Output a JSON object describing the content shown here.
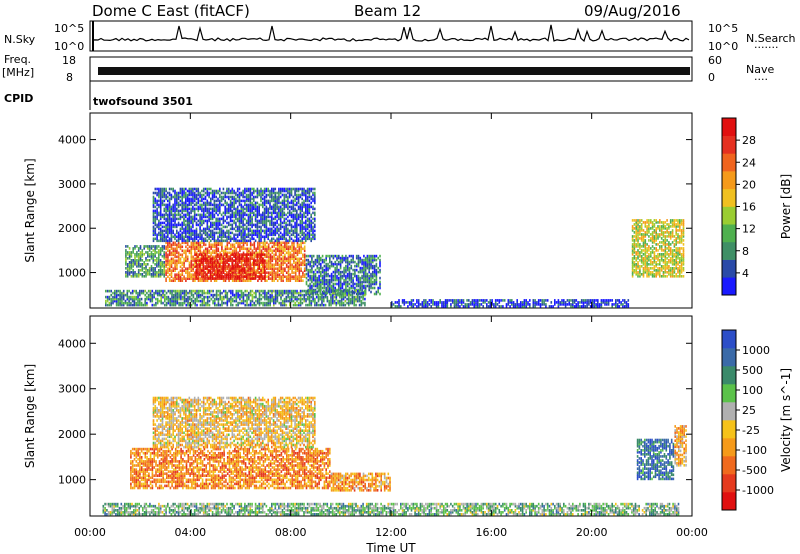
{
  "header": {
    "station": "Dome C East (fitACF)",
    "beam": "Beam 12",
    "date": "09/Aug/2016"
  },
  "strip_labels": {
    "nsky": "N.Sky",
    "nsky_top": "10^5",
    "nsky_bottom": "10^0",
    "nsearch": "N.Search",
    "nsearch_dots": "·······",
    "nsearch_top": "10^5",
    "nsearch_bottom": "10^0",
    "freq_top_line": "Freq.",
    "freq_unit": "[MHz]",
    "freq_top": "18",
    "freq_bottom": "8",
    "nave": "Nave",
    "nave_dots": "····",
    "nave_top": "60",
    "nave_bottom": "0",
    "cpid": "CPID",
    "cpid_value": "twofsound 3501"
  },
  "colors": {
    "power_scale": [
      "#1a1aff",
      "#2a4aa8",
      "#3f8f66",
      "#4fb04f",
      "#9acd32",
      "#f0c020",
      "#f59a1a",
      "#f0641e",
      "#e53020",
      "#e11010"
    ],
    "velocity_scale": [
      "#2c4ec8",
      "#3a6aa8",
      "#3a8a6a",
      "#5bc24a",
      "#b0b0b0",
      "#f5c21a",
      "#f59a1a",
      "#f06a1e",
      "#e53a1e",
      "#e01010"
    ]
  },
  "chart_data": [
    {
      "type": "heatmap",
      "name": "power",
      "ylabel": "Slant Range [km]",
      "xlabel": "Time UT",
      "ylim": [
        200,
        4600
      ],
      "yticks": [
        "1000",
        "2000",
        "3000",
        "4000"
      ],
      "xticks": [
        "00:00",
        "04:00",
        "08:00",
        "12:00",
        "16:00",
        "20:00",
        "00:00"
      ],
      "colorbar_label": "Power [dB]",
      "colorbar_ticks": [
        "4",
        "8",
        "12",
        "16",
        "20",
        "24",
        "28"
      ],
      "regions": [
        {
          "t0": 3.0,
          "t1": 8.6,
          "r0": 800,
          "r1": 1700,
          "level": 0.72
        },
        {
          "t0": 4.2,
          "t1": 7.0,
          "r0": 850,
          "r1": 1400,
          "level": 0.92
        },
        {
          "t0": 1.4,
          "t1": 3.0,
          "r0": 900,
          "r1": 1600,
          "level": 0.3
        },
        {
          "t0": 8.6,
          "t1": 11.6,
          "r0": 500,
          "r1": 1400,
          "level": 0.2
        },
        {
          "t0": 21.6,
          "t1": 23.7,
          "r0": 900,
          "r1": 2200,
          "level": 0.5
        },
        {
          "t0": 0.6,
          "t1": 11.0,
          "r0": 250,
          "r1": 600,
          "level": 0.25
        },
        {
          "t0": 2.5,
          "t1": 9.0,
          "r0": 1700,
          "r1": 2900,
          "level": 0.15
        },
        {
          "t0": 12.0,
          "t1": 21.5,
          "r0": 220,
          "r1": 400,
          "level": 0.1
        }
      ]
    },
    {
      "type": "heatmap",
      "name": "velocity",
      "ylabel": "Slant Range [km]",
      "xlabel": "Time UT",
      "ylim": [
        200,
        4600
      ],
      "yticks": [
        "1000",
        "2000",
        "3000",
        "4000"
      ],
      "xticks": [
        "00:00",
        "04:00",
        "08:00",
        "12:00",
        "16:00",
        "20:00",
        "00:00"
      ],
      "colorbar_label": "Velocity [m s^-1]",
      "colorbar_ticks": [
        "1000",
        "500",
        "100",
        "25",
        "-25",
        "-100",
        "-500",
        "-1000"
      ],
      "regions": [
        {
          "t0": 1.6,
          "t1": 9.6,
          "r0": 800,
          "r1": 1700,
          "level": 0.7
        },
        {
          "t0": 9.6,
          "t1": 12.0,
          "r0": 750,
          "r1": 1150,
          "level": 0.65
        },
        {
          "t0": 21.8,
          "t1": 23.3,
          "r0": 1000,
          "r1": 1900,
          "level": 0.15
        },
        {
          "t0": 23.3,
          "t1": 23.8,
          "r0": 1300,
          "r1": 2200,
          "level": 0.6
        },
        {
          "t0": 2.5,
          "t1": 9.0,
          "r0": 1700,
          "r1": 2800,
          "level": 0.55
        },
        {
          "t0": 0.5,
          "t1": 23.5,
          "r0": 220,
          "r1": 450,
          "level": 0.35
        }
      ]
    }
  ]
}
